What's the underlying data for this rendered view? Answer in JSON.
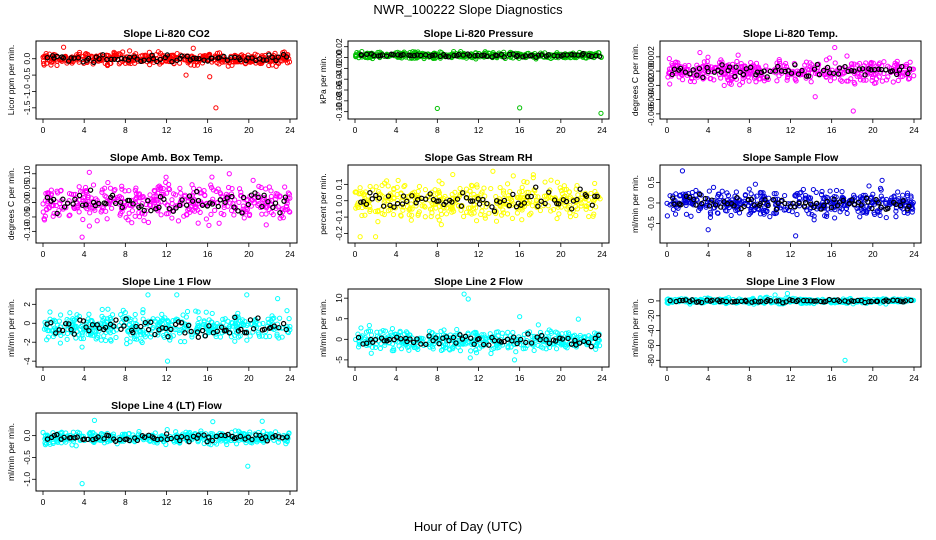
{
  "figure": {
    "title": "NWR_100222  Slope Diagnostics",
    "xlabel": "Hour of Day (UTC)"
  },
  "chart_data": [
    {
      "type": "scatter",
      "title": "Slope Li-820 CO2",
      "ylabel": "Licor ppm per min.",
      "color": "#ff0000",
      "x_ticks": [
        "0",
        "4",
        "8",
        "12",
        "16",
        "20",
        "24"
      ],
      "y_ticks": [
        "-1.5",
        "-1.0",
        "-0.5",
        "0.0"
      ],
      "xlim": [
        0,
        24
      ],
      "ylim": [
        -1.75,
        0.45
      ],
      "center": 0.0,
      "spread": 0.13,
      "outliers": [
        [
          13.9,
          -0.5
        ],
        [
          16.2,
          -0.55
        ],
        [
          16.8,
          -1.5
        ],
        [
          2.0,
          0.35
        ],
        [
          14.6,
          0.32
        ]
      ]
    },
    {
      "type": "scatter",
      "title": "Slope Li-820 Pressure",
      "ylabel": "kPa per min.",
      "color": "#00c000",
      "x_ticks": [
        "0",
        "4",
        "8",
        "12",
        "16",
        "20",
        "24"
      ],
      "y_ticks": [
        "-0.10",
        "-0.08",
        "-0.06",
        "-0.04",
        "-0.02",
        "0.00",
        "0.02"
      ],
      "xlim": [
        0,
        24
      ],
      "ylim": [
        -0.108,
        0.025
      ],
      "center": 0.004,
      "spread": 0.004,
      "outliers": [
        [
          8.0,
          -0.094
        ],
        [
          16.0,
          -0.093
        ],
        [
          23.9,
          -0.103
        ]
      ]
    },
    {
      "type": "scatter",
      "title": "Slope Li-820 Temp.",
      "ylabel": "degrees C per min.",
      "color": "#ff00ff",
      "x_ticks": [
        "0",
        "4",
        "8",
        "12",
        "16",
        "20",
        "24"
      ],
      "y_ticks": [
        "-0.006",
        "-0.004",
        "-0.002",
        "0.000",
        "0.002"
      ],
      "xlim": [
        0,
        24
      ],
      "ylim": [
        -0.0063,
        0.0038
      ],
      "center": 0.0,
      "spread": 0.0011,
      "outliers": [
        [
          14.4,
          -0.0036
        ],
        [
          18.1,
          -0.0056
        ],
        [
          16.3,
          0.0033
        ],
        [
          3.2,
          0.0026
        ]
      ]
    },
    {
      "type": "scatter",
      "title": "Slope Amb. Box Temp.",
      "ylabel": "degrees C per min.",
      "color": "#ff00ff",
      "x_ticks": [
        "0",
        "4",
        "8",
        "12",
        "16",
        "20",
        "24"
      ],
      "y_ticks": [
        "-0.10",
        "-0.05",
        "0.00",
        "0.05",
        "0.10"
      ],
      "xlim": [
        0,
        24
      ],
      "ylim": [
        -0.13,
        0.12
      ],
      "center": 0.0,
      "spread": 0.045,
      "outliers": [
        [
          3.8,
          -0.12
        ],
        [
          4.5,
          0.105
        ],
        [
          18.1,
          0.1
        ]
      ]
    },
    {
      "type": "scatter",
      "title": "Slope Gas Stream RH",
      "ylabel": "percent per min.",
      "color": "#ffff00",
      "x_ticks": [
        "0",
        "4",
        "8",
        "12",
        "16",
        "20",
        "24"
      ],
      "y_ticks": [
        "-0.2",
        "-0.1",
        "0.0",
        "0.1"
      ],
      "xlim": [
        0,
        24
      ],
      "ylim": [
        -0.24,
        0.2
      ],
      "center": 0.0,
      "spread": 0.08,
      "outliers": [
        [
          0.5,
          -0.22
        ],
        [
          2.0,
          -0.22
        ],
        [
          9.5,
          0.16
        ],
        [
          13.4,
          0.18
        ]
      ]
    },
    {
      "type": "scatter",
      "title": "Slope Sample Flow",
      "ylabel": "ml/min per min.",
      "color": "#0000dd",
      "x_ticks": [
        "0",
        "4",
        "8",
        "12",
        "16",
        "20",
        "24"
      ],
      "y_ticks": [
        "-0.5",
        "0.0",
        "0.5"
      ],
      "xlim": [
        0,
        24
      ],
      "ylim": [
        -0.9,
        0.85
      ],
      "center": 0.0,
      "spread": 0.22,
      "outliers": [
        [
          1.5,
          0.78
        ],
        [
          4.0,
          -0.65
        ],
        [
          12.5,
          -0.8
        ],
        [
          20.9,
          0.55
        ]
      ]
    },
    {
      "type": "scatter",
      "title": "Slope Line 1 Flow",
      "ylabel": "ml/min per min.",
      "color": "#00ffff",
      "x_ticks": [
        "0",
        "4",
        "8",
        "12",
        "16",
        "20",
        "24"
      ],
      "y_ticks": [
        "-4",
        "-2",
        "0",
        "2"
      ],
      "xlim": [
        0,
        24
      ],
      "ylim": [
        -4.3,
        3.3
      ],
      "center": -0.4,
      "spread": 1.1,
      "outliers": [
        [
          10.2,
          3.0
        ],
        [
          12.1,
          -4.0
        ],
        [
          13.0,
          3.0
        ],
        [
          19.8,
          3.0
        ],
        [
          22.8,
          2.6
        ]
      ]
    },
    {
      "type": "scatter",
      "title": "Slope Line 2 Flow",
      "ylabel": "ml/min per min.",
      "color": "#00ffff",
      "x_ticks": [
        "0",
        "4",
        "8",
        "12",
        "16",
        "20",
        "24"
      ],
      "y_ticks": [
        "-5",
        "0",
        "5",
        "10"
      ],
      "xlim": [
        0,
        24
      ],
      "ylim": [
        -6,
        11.5
      ],
      "center": -0.3,
      "spread": 1.8,
      "outliers": [
        [
          10.6,
          11.0
        ],
        [
          11.0,
          9.8
        ],
        [
          11.2,
          -4.5
        ],
        [
          15.5,
          -5.0
        ],
        [
          16.0,
          5.5
        ],
        [
          21.7,
          4.9
        ]
      ]
    },
    {
      "type": "scatter",
      "title": "Slope Line 3 Flow",
      "ylabel": "ml/min per min.",
      "color": "#00ffff",
      "x_ticks": [
        "0",
        "4",
        "8",
        "12",
        "16",
        "20",
        "24"
      ],
      "y_ticks": [
        "-80",
        "-60",
        "-40",
        "-20",
        "0"
      ],
      "xlim": [
        0,
        24
      ],
      "ylim": [
        -85,
        12
      ],
      "center": 0.0,
      "spread": 2.5,
      "outliers": [
        [
          10.5,
          8.0
        ],
        [
          11.7,
          10.0
        ],
        [
          17.3,
          -80.0
        ]
      ]
    },
    {
      "type": "scatter",
      "title": "Slope Line 4 (LT) Flow",
      "ylabel": "ml/min per min.",
      "color": "#00ffff",
      "x_ticks": [
        "0",
        "4",
        "8",
        "12",
        "16",
        "20",
        "24"
      ],
      "y_ticks": [
        "-1.0",
        "-0.5",
        "0.0"
      ],
      "xlim": [
        0,
        24
      ],
      "ylim": [
        -1.2,
        0.45
      ],
      "center": -0.05,
      "spread": 0.1,
      "outliers": [
        [
          3.8,
          -1.1
        ],
        [
          19.9,
          -0.7
        ],
        [
          5.0,
          0.35
        ],
        [
          16.5,
          0.32
        ],
        [
          21.3,
          0.33
        ]
      ]
    }
  ]
}
